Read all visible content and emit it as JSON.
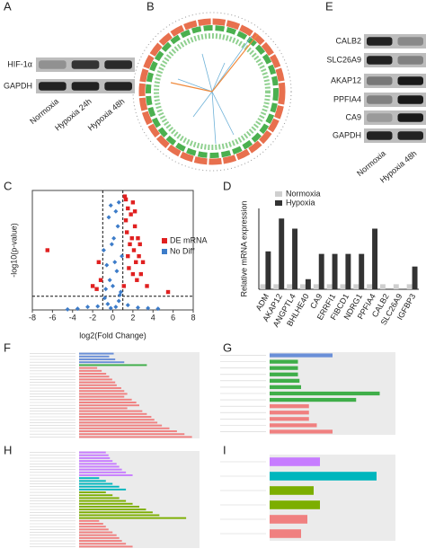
{
  "panel_labels": [
    "A",
    "B",
    "C",
    "D",
    "E",
    "F",
    "G",
    "H",
    "I"
  ],
  "blot_A": {
    "rows": [
      "HIF-1α",
      "GAPDH"
    ],
    "lanes": [
      "Normoxia",
      "Hypoxia 24h",
      "Hypoxia 48h"
    ]
  },
  "blot_E": {
    "rows": [
      "CALB2",
      "SLC26A9",
      "AKAP12",
      "PPFIA4",
      "CA9",
      "GAPDH"
    ],
    "lanes": [
      "Normoxia",
      "Hypoxia 48h"
    ]
  },
  "chart_data": [
    {
      "type": "scatter",
      "xlabel": "log2(Fold Change)",
      "ylabel": "-log10(p-value)",
      "xlim": [
        -8,
        8
      ],
      "ylim": [
        0,
        20
      ],
      "xticks": [
        -8,
        -6,
        -4,
        -2,
        0,
        2,
        4,
        6,
        8
      ],
      "legend": "upper-right",
      "series": [
        {
          "name": "DE mRNA",
          "color": "#e02020",
          "marker": "square",
          "x": [
            1.2,
            1.5,
            1.8,
            2.0,
            2.2,
            2.5,
            1.4,
            1.7,
            2.1,
            2.6,
            3.0,
            1.3,
            1.9,
            2.3,
            2.8,
            1.6,
            2.4,
            3.4,
            1.1,
            1.5,
            2.0,
            2.7,
            -1.2,
            -1.6,
            -2.0,
            -1.4,
            -6.5,
            5.5,
            1.3,
            2.2
          ],
          "values": [
            19,
            17,
            16,
            18,
            14,
            12,
            13,
            11,
            10,
            9,
            8,
            15,
            12,
            8,
            6,
            7,
            5,
            4,
            4,
            9,
            6,
            11,
            5,
            3.5,
            4,
            8,
            10,
            3,
            18.5,
            16.5
          ]
        },
        {
          "name": "No Diff",
          "color": "#3d7cc9",
          "marker": "diamond",
          "x": [
            -0.2,
            0.3,
            -0.5,
            0.6,
            -0.8,
            0.8,
            0.0,
            -0.3,
            0.4,
            -0.6,
            0.9,
            -0.9,
            0.1,
            0.5,
            -0.4,
            0.2,
            -0.1,
            0.7,
            -0.7,
            1.5,
            -1.5,
            2.5,
            -2.5,
            3.5,
            -3.5,
            4.5,
            -4.5,
            0.3,
            -0.2,
            0.6
          ],
          "values": [
            0.3,
            0.5,
            1.0,
            1.5,
            2.0,
            3.0,
            4.0,
            5.0,
            6.5,
            7.5,
            9.0,
            10.0,
            12.0,
            14.0,
            15.5,
            8.0,
            11.0,
            2.5,
            3.5,
            0.8,
            0.6,
            0.4,
            0.5,
            0.3,
            0.2,
            0.2,
            0.1,
            16.5,
            17.5,
            18.0
          ]
        }
      ]
    },
    {
      "type": "bar",
      "ylabel": "Relative mRNA expression",
      "ylim": [
        0,
        16
      ],
      "legend": "upper-left",
      "categories": [
        "ADM",
        "AKAP12",
        "ANGPTL4",
        "BHLHE40",
        "CA9",
        "ERRFI1",
        "FIBCD1",
        "NDRG1",
        "PPFIA4",
        "CALB2",
        "SLC26A9",
        "IGFBP3"
      ],
      "series": [
        {
          "name": "Normoxia",
          "color": "#cfcfcf",
          "values": [
            1,
            1,
            1,
            1,
            1,
            1,
            1,
            1,
            1,
            1,
            1,
            1
          ]
        },
        {
          "name": "Hypoxia",
          "color": "#333333",
          "values": [
            7.5,
            14,
            12,
            2,
            7,
            7,
            7,
            7,
            12,
            0.1,
            0.05,
            4.5
          ]
        }
      ]
    },
    {
      "type": "barh",
      "xlim": [
        0,
        8
      ],
      "categories": [
        null,
        null,
        null,
        null,
        null,
        null,
        null,
        null,
        null,
        null,
        null,
        null,
        null,
        null,
        null,
        null,
        null,
        null,
        null,
        null,
        null,
        null,
        null,
        null,
        null,
        null,
        null,
        null,
        null,
        null
      ],
      "values": [
        2.3,
        2.0,
        2.4,
        3.0,
        4.5,
        1.2,
        1.5,
        1.8,
        2.0,
        2.2,
        2.4,
        2.5,
        2.8,
        3.0,
        3.2,
        3.0,
        3.5,
        3.8,
        4.0,
        3.2,
        4.2,
        4.5,
        4.8,
        5.0,
        5.2,
        5.5,
        6.0,
        6.5,
        7.0,
        7.5
      ],
      "colors": [
        "#6a8fd8",
        "#6a8fd8",
        "#6a8fd8",
        "#6a8fd8",
        "#3fae49",
        "#f08080",
        "#f08080",
        "#f08080",
        "#f08080",
        "#f08080",
        "#f08080",
        "#f08080",
        "#f08080",
        "#f08080",
        "#f08080",
        "#f08080",
        "#f08080",
        "#f08080",
        "#f08080",
        "#f08080",
        "#f08080",
        "#f08080",
        "#f08080",
        "#f08080",
        "#f08080",
        "#f08080",
        "#f08080",
        "#f08080",
        "#f08080",
        "#f08080"
      ]
    },
    {
      "type": "barh",
      "xlim": [
        0,
        8
      ],
      "categories": [
        null,
        null,
        null,
        null,
        null,
        null,
        null,
        null,
        null,
        null,
        null,
        null,
        null
      ],
      "values": [
        4,
        1.8,
        1.8,
        1.8,
        1.9,
        2,
        7,
        5.5,
        2.5,
        2.5,
        2.5,
        3,
        4
      ],
      "colors": [
        "#6a8fd8",
        "#3fae49",
        "#3fae49",
        "#3fae49",
        "#3fae49",
        "#3fae49",
        "#3fae49",
        "#3fae49",
        "#f08080",
        "#f08080",
        "#f08080",
        "#f08080",
        "#f08080"
      ]
    },
    {
      "type": "barh",
      "xlim": [
        0,
        9
      ],
      "categories": [
        null,
        null,
        null,
        null,
        null,
        null,
        null,
        null,
        null,
        null,
        null,
        null,
        null,
        null,
        null,
        null,
        null,
        null,
        null,
        null,
        null,
        null,
        null,
        null,
        null,
        null,
        null,
        null,
        null,
        null,
        null,
        null,
        null,
        null
      ],
      "values": [
        2.0,
        2.2,
        2.3,
        2.5,
        2.8,
        3.0,
        3.2,
        3.5,
        4.0,
        1.5,
        2.0,
        2.5,
        3.0,
        3.5,
        2.0,
        2.5,
        3.0,
        3.5,
        4.0,
        4.5,
        5.0,
        5.5,
        6.0,
        8.0,
        1.5,
        1.8,
        2.0,
        2.2,
        2.5,
        2.8,
        3.0,
        3.2,
        3.5,
        4.0
      ],
      "colors": [
        "#c77cff",
        "#c77cff",
        "#c77cff",
        "#c77cff",
        "#c77cff",
        "#c77cff",
        "#c77cff",
        "#c77cff",
        "#c77cff",
        "#00b6bd",
        "#00b6bd",
        "#00b6bd",
        "#00b6bd",
        "#00b6bd",
        "#7cae00",
        "#7cae00",
        "#7cae00",
        "#7cae00",
        "#7cae00",
        "#7cae00",
        "#7cae00",
        "#7cae00",
        "#7cae00",
        "#7cae00",
        "#f08080",
        "#f08080",
        "#f08080",
        "#f08080",
        "#f08080",
        "#f08080",
        "#f08080",
        "#f08080",
        "#f08080",
        "#f08080"
      ]
    },
    {
      "type": "barh",
      "xlim": [
        0,
        10
      ],
      "categories": [
        null,
        null,
        null,
        null,
        null,
        null
      ],
      "values": [
        4,
        8.5,
        3.5,
        4,
        3,
        2.5
      ],
      "colors": [
        "#c77cff",
        "#00b6bd",
        "#7cae00",
        "#7cae00",
        "#f08080",
        "#f08080"
      ]
    }
  ]
}
